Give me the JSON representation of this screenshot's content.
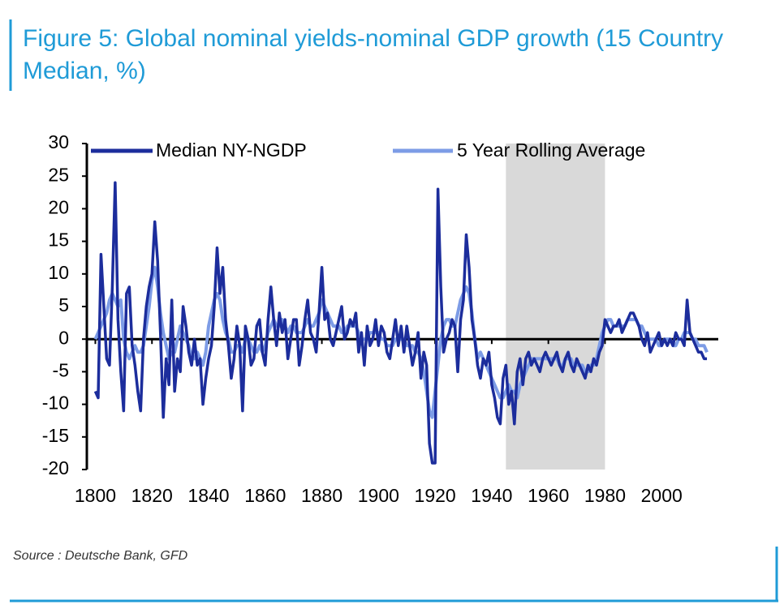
{
  "chart_data": {
    "type": "line",
    "title": "Figure 5: Global nominal yields-nominal GDP growth (15 Country Median, %)",
    "source": "Source : Deutsche Bank, GFD",
    "x": [
      1800,
      1801,
      1802,
      1803,
      1804,
      1805,
      1806,
      1807,
      1808,
      1809,
      1810,
      1811,
      1812,
      1813,
      1814,
      1815,
      1816,
      1817,
      1818,
      1819,
      1820,
      1821,
      1822,
      1823,
      1824,
      1825,
      1826,
      1827,
      1828,
      1829,
      1830,
      1831,
      1832,
      1833,
      1834,
      1835,
      1836,
      1837,
      1838,
      1839,
      1840,
      1841,
      1842,
      1843,
      1844,
      1845,
      1846,
      1847,
      1848,
      1849,
      1850,
      1851,
      1852,
      1853,
      1854,
      1855,
      1856,
      1857,
      1858,
      1859,
      1860,
      1861,
      1862,
      1863,
      1864,
      1865,
      1866,
      1867,
      1868,
      1869,
      1870,
      1871,
      1872,
      1873,
      1874,
      1875,
      1876,
      1877,
      1878,
      1879,
      1880,
      1881,
      1882,
      1883,
      1884,
      1885,
      1886,
      1887,
      1888,
      1889,
      1890,
      1891,
      1892,
      1893,
      1894,
      1895,
      1896,
      1897,
      1898,
      1899,
      1900,
      1901,
      1902,
      1903,
      1904,
      1905,
      1906,
      1907,
      1908,
      1909,
      1910,
      1911,
      1912,
      1913,
      1914,
      1915,
      1916,
      1917,
      1918,
      1919,
      1920,
      1921,
      1922,
      1923,
      1924,
      1925,
      1926,
      1927,
      1928,
      1929,
      1930,
      1931,
      1932,
      1933,
      1934,
      1935,
      1936,
      1937,
      1938,
      1939,
      1940,
      1941,
      1942,
      1943,
      1944,
      1945,
      1946,
      1947,
      1948,
      1949,
      1950,
      1951,
      1952,
      1953,
      1954,
      1955,
      1956,
      1957,
      1958,
      1959,
      1960,
      1961,
      1962,
      1963,
      1964,
      1965,
      1966,
      1967,
      1968,
      1969,
      1970,
      1971,
      1972,
      1973,
      1974,
      1975,
      1976,
      1977,
      1978,
      1979,
      1980,
      1981,
      1982,
      1983,
      1984,
      1985,
      1986,
      1987,
      1988,
      1989,
      1990,
      1991,
      1992,
      1993,
      1994,
      1995,
      1996,
      1997,
      1998,
      1999,
      2000,
      2001,
      2002,
      2003,
      2004,
      2005,
      2006,
      2007,
      2008,
      2009,
      2010,
      2011,
      2012,
      2013,
      2014,
      2015,
      2016
    ],
    "series": [
      {
        "name": "Median NY-NGDP",
        "color": "#1c2d9c",
        "width": 3.5,
        "values": [
          -8,
          -9,
          13,
          5,
          -3,
          -4,
          8,
          24,
          3,
          -5,
          -11,
          7,
          8,
          -1,
          -4,
          -8,
          -11,
          0,
          5,
          8,
          10,
          18,
          12,
          1,
          -12,
          -3,
          -7,
          6,
          -8,
          -3,
          -5,
          5,
          2,
          -2,
          -4,
          0,
          -4,
          -3,
          -10,
          -6,
          -3,
          -1,
          5,
          14,
          7,
          11,
          3,
          -1,
          -6,
          -3,
          2,
          -1,
          -11,
          2,
          0,
          -4,
          -3,
          2,
          3,
          -2,
          -4,
          3,
          8,
          3,
          -1,
          4,
          1,
          3,
          -3,
          0,
          3,
          3,
          -4,
          -1,
          3,
          6,
          1,
          0,
          -2,
          4,
          11,
          3,
          4,
          0,
          -1,
          1,
          3,
          5,
          0,
          1,
          3,
          2,
          4,
          -2,
          1,
          -4,
          2,
          -1,
          0,
          3,
          -1,
          2,
          1,
          -2,
          -3,
          0,
          3,
          -1,
          2,
          -2,
          2,
          -1,
          -4,
          -2,
          1,
          -6,
          -2,
          -4,
          -16,
          -19,
          -19,
          23,
          8,
          -2,
          0,
          1,
          3,
          2,
          -5,
          3,
          6,
          16,
          11,
          3,
          0,
          -4,
          -6,
          -3,
          -4,
          -2,
          -7,
          -9,
          -12,
          -13,
          -6,
          -4,
          -10,
          -8,
          -13,
          -5,
          -3,
          -7,
          -3,
          -2,
          -4,
          -3,
          -4,
          -5,
          -3,
          -2,
          -3,
          -4,
          -3,
          -2,
          -4,
          -5,
          -3,
          -2,
          -4,
          -5,
          -3,
          -4,
          -5,
          -6,
          -4,
          -5,
          -3,
          -4,
          -2,
          -1,
          3,
          2,
          1,
          2,
          2,
          3,
          1,
          2,
          3,
          4,
          4,
          3,
          2,
          0,
          -1,
          1,
          -2,
          -1,
          0,
          1,
          -1,
          0,
          -1,
          0,
          -1,
          1,
          0,
          0,
          -1,
          6,
          1,
          0,
          -1,
          -2,
          -2,
          -3,
          -3
        ]
      },
      {
        "name": "5 Year Rolling Average",
        "color": "#7d9ce6",
        "width": 4,
        "values": [
          0,
          1,
          2,
          3,
          4,
          6,
          7,
          6,
          5,
          6,
          0,
          -2,
          -3,
          -2,
          -1,
          -2,
          -2,
          -1,
          2,
          5,
          9,
          11,
          8,
          4,
          1,
          -1,
          -3,
          -2,
          -2,
          0,
          2,
          1,
          0,
          -1,
          -3,
          -3,
          -2,
          -3,
          -4,
          -2,
          2,
          4,
          6,
          7,
          6,
          3,
          1,
          0,
          -2,
          -2,
          -1,
          -1,
          -2,
          0,
          0,
          -1,
          -2,
          -2,
          -1,
          -2,
          -1,
          1,
          2,
          3,
          2,
          2,
          3,
          2,
          1,
          2,
          2,
          1,
          1,
          1,
          2,
          3,
          2,
          2,
          3,
          4,
          6,
          5,
          4,
          3,
          2,
          2,
          2,
          1,
          1,
          2,
          2,
          2,
          2,
          1,
          0,
          0,
          0,
          1,
          1,
          1,
          1,
          0,
          0,
          -1,
          -1,
          -1,
          0,
          0,
          0,
          0,
          -1,
          -1,
          -1,
          -2,
          -2,
          -3,
          -5,
          -8,
          -11,
          -12,
          -8,
          -4,
          0,
          2,
          3,
          3,
          2,
          2,
          4,
          6,
          7,
          8,
          7,
          4,
          0,
          -3,
          -2,
          -3,
          -4,
          -5,
          -6,
          -7,
          -8,
          -9,
          -9,
          -8,
          -7,
          -8,
          -8,
          -9,
          -7,
          -6,
          -5,
          -4,
          -3,
          -3,
          -3,
          -3,
          -3,
          -3,
          -3,
          -3,
          -3,
          -3,
          -4,
          -4,
          -3,
          -3,
          -3,
          -4,
          -4,
          -4,
          -4,
          -5,
          -5,
          -4,
          -4,
          -3,
          -1,
          1,
          2,
          3,
          3,
          2,
          2,
          2,
          2,
          2,
          3,
          3,
          3,
          3,
          2,
          2,
          1,
          0,
          0,
          0,
          0,
          -1,
          -1,
          0,
          0,
          0,
          -1,
          -1,
          0,
          0,
          1,
          1,
          1,
          0,
          0,
          -1,
          -1,
          -1,
          -2
        ]
      }
    ],
    "xlim": [
      1797,
      2020
    ],
    "xticks": [
      1800,
      1820,
      1840,
      1860,
      1880,
      1900,
      1920,
      1940,
      1960,
      1980,
      2000
    ],
    "ylim": [
      -20,
      30
    ],
    "yticks": [
      -20,
      -15,
      -10,
      -5,
      0,
      5,
      10,
      15,
      20,
      25,
      30
    ],
    "shaded_region": [
      1945,
      1980
    ],
    "shade_color": "#d9d9d9",
    "legend": "top"
  }
}
